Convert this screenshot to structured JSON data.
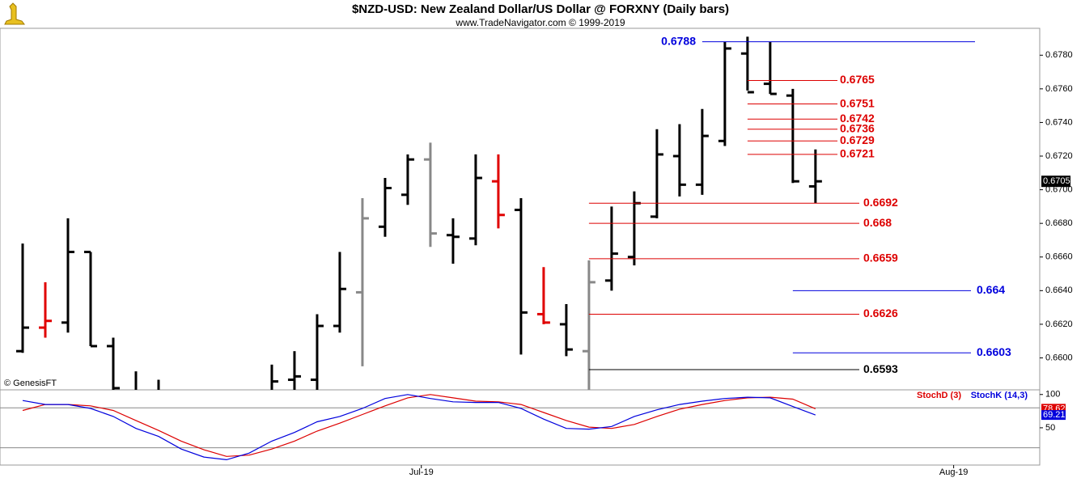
{
  "chart_data": [
    {
      "type": "ohlc",
      "title": "$NZD-USD:  New Zealand Dollar/US Dollar @ FORXNY  (Daily bars)",
      "subtitle": "www.TradeNavigator.com © 1999-2019",
      "annotation": "© GenesisFT",
      "categories": [
        null,
        null,
        null,
        null,
        null,
        null,
        null,
        null,
        null,
        null,
        null,
        null,
        null,
        null,
        null,
        null,
        null,
        null,
        null,
        null,
        null,
        null,
        null,
        null,
        null,
        null,
        null,
        null,
        null,
        null,
        null,
        null,
        null,
        null,
        null,
        null
      ],
      "open": [
        0.6604,
        0.6618,
        0.6621,
        0.6663,
        0.6607,
        null,
        null,
        null,
        null,
        null,
        null,
        null,
        0.6587,
        0.6587,
        0.6619,
        0.6639,
        0.6678,
        0.6697,
        0.6718,
        0.6673,
        0.6671,
        0.6705,
        0.6688,
        0.6626,
        0.662,
        0.6604,
        0.6646,
        0.666,
        0.6684,
        0.672,
        0.6703,
        0.6729,
        0.6781,
        0.6763,
        0.6756,
        0.6702
      ],
      "high": [
        0.6668,
        0.6645,
        0.6683,
        0.6663,
        0.6612,
        0.6592,
        0.6587,
        null,
        null,
        null,
        null,
        0.6596,
        0.6604,
        0.6626,
        0.6663,
        0.6695,
        0.6707,
        0.6721,
        0.6728,
        0.6683,
        0.6721,
        0.6721,
        0.6695,
        0.6654,
        0.6632,
        0.6658,
        0.669,
        0.6699,
        0.6736,
        0.6739,
        0.6748,
        0.6788,
        0.6791,
        0.6788,
        0.676,
        0.6724
      ],
      "low": [
        0.6603,
        0.6612,
        0.6615,
        0.6607,
        0.657,
        0.6565,
        0.6565,
        null,
        null,
        null,
        null,
        0.657,
        0.6575,
        0.6578,
        0.6615,
        0.6595,
        0.6672,
        0.6691,
        0.6666,
        0.6656,
        0.6667,
        0.6677,
        0.6602,
        0.662,
        0.6601,
        0.6575,
        0.664,
        0.6655,
        0.6683,
        0.6696,
        0.6697,
        0.6726,
        0.6759,
        0.6757,
        0.6704,
        0.6692
      ],
      "close": [
        0.6618,
        0.6622,
        0.6663,
        0.6607,
        0.6582,
        null,
        null,
        null,
        null,
        null,
        null,
        0.6586,
        0.6589,
        0.6619,
        0.6641,
        0.6683,
        0.6701,
        0.6718,
        0.6674,
        0.6672,
        0.6707,
        0.6685,
        0.6627,
        0.6621,
        0.6605,
        0.6645,
        0.6662,
        0.6692,
        0.6721,
        0.6703,
        0.6732,
        0.6784,
        0.6758,
        0.6757,
        0.6705,
        0.6705
      ],
      "bar_colors": [
        "#000",
        "#e00000",
        "#000",
        "#000",
        "#000",
        "#000",
        "#000",
        "#000",
        "#000",
        "#000",
        "#000",
        "#000",
        "#000",
        "#000",
        "#000",
        "#888",
        "#000",
        "#000",
        "#888",
        "#000",
        "#000",
        "#e00000",
        "#000",
        "#e00000",
        "#000",
        "#888",
        "#000",
        "#000",
        "#000",
        "#000",
        "#000",
        "#000",
        "#000",
        "#000",
        "#000",
        "#000"
      ],
      "levels": [
        {
          "value": 0.6788,
          "color": "#0000dd"
        },
        {
          "value": 0.6765,
          "color": "#dd0000"
        },
        {
          "value": 0.6751,
          "color": "#dd0000"
        },
        {
          "value": 0.6742,
          "color": "#dd0000"
        },
        {
          "value": 0.6736,
          "color": "#dd0000"
        },
        {
          "value": 0.6729,
          "color": "#dd0000"
        },
        {
          "value": 0.6721,
          "color": "#dd0000"
        },
        {
          "value": 0.6692,
          "color": "#dd0000"
        },
        {
          "value": 0.668,
          "color": "#dd0000"
        },
        {
          "value": 0.6659,
          "color": "#dd0000"
        },
        {
          "value": 0.664,
          "color": "#0000dd"
        },
        {
          "value": 0.6626,
          "color": "#dd0000"
        },
        {
          "value": 0.6603,
          "color": "#0000dd"
        },
        {
          "value": 0.6593,
          "color": "#000000"
        }
      ],
      "last": 0.6705,
      "ylim": [
        0.6581,
        0.6796
      ],
      "yticks": [
        {
          "value": 0.66,
          "label": "0.6600"
        },
        {
          "value": 0.662,
          "label": "0.6620"
        },
        {
          "value": 0.664,
          "label": "0.6640"
        },
        {
          "value": 0.666,
          "label": "0.6660"
        },
        {
          "value": 0.668,
          "label": "0.6680"
        },
        {
          "value": 0.67,
          "label": "0.6700"
        },
        {
          "value": 0.672,
          "label": "0.6720"
        },
        {
          "value": 0.674,
          "label": "0.6740"
        },
        {
          "value": 0.676,
          "label": "0.6760"
        },
        {
          "value": 0.678,
          "label": "0.6780"
        }
      ],
      "xlim": [
        -1,
        44.9
      ]
    },
    {
      "type": "line",
      "series": [
        {
          "name": "StochD (3)",
          "color": "#dd0000",
          "values": [
            76,
            85,
            85,
            83,
            76,
            61,
            46,
            30,
            17,
            7,
            9,
            18,
            30,
            45,
            57,
            70,
            83,
            95,
            100,
            95,
            90,
            89,
            85,
            73,
            61,
            51,
            49,
            55,
            67,
            78,
            85,
            91,
            95,
            96,
            93,
            78.62
          ]
        },
        {
          "name": "StochK (14,3)",
          "color": "#0000dd",
          "values": [
            91,
            85,
            85,
            79,
            67,
            49,
            37,
            18,
            6,
            2,
            12,
            30,
            43,
            59,
            67,
            79,
            94,
            100,
            94,
            89,
            88,
            88,
            79,
            63,
            49,
            48,
            52,
            67,
            77,
            85,
            90,
            94,
            96,
            95,
            82,
            69.21
          ]
        }
      ],
      "ylim": [
        -6,
        107
      ],
      "yticks": [
        50,
        100
      ],
      "reference_lines": [
        80,
        20
      ],
      "xlim": [
        -1,
        44.9
      ],
      "xticks": [
        {
          "value": 17.6,
          "label": "Jul-19"
        },
        {
          "value": 41.1,
          "label": "Aug-19"
        }
      ]
    }
  ]
}
